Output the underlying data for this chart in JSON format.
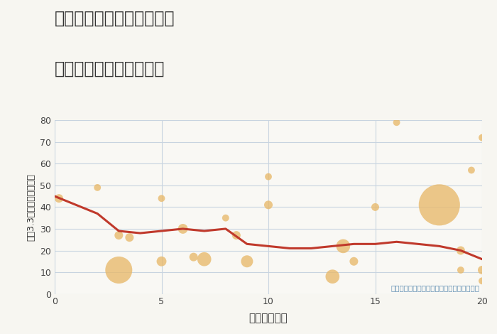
{
  "title_line1": "兵庫県豊岡市日高町森山の",
  "title_line2": "駅距離別中古戸建て価格",
  "xlabel": "駅距離（分）",
  "ylabel": "坪（3.3㎡）単価（万円）",
  "xlim": [
    0,
    20
  ],
  "ylim": [
    0,
    80
  ],
  "yticks": [
    0,
    10,
    20,
    30,
    40,
    50,
    60,
    70,
    80
  ],
  "xticks": [
    0,
    5,
    10,
    15,
    20
  ],
  "bg_color": "#f7f6f1",
  "plot_bg_color": "#f9f8f4",
  "grid_color": "#c8d4e0",
  "bubble_color": "#e8b96a",
  "bubble_alpha": 0.78,
  "line_color": "#c0392b",
  "line_width": 2.2,
  "annotation_text": "円の大きさは、取引のあった物件面積を示す",
  "annotation_color": "#5a8ab0",
  "scatter_x": [
    0.2,
    2,
    3,
    3,
    3.5,
    5,
    5,
    6,
    6.5,
    7,
    8,
    8.5,
    9,
    10,
    10,
    13,
    13.5,
    14,
    15,
    16,
    18,
    19,
    19,
    19.5,
    20,
    20,
    20
  ],
  "scatter_y": [
    44,
    49,
    27,
    11,
    26,
    15,
    44,
    30,
    17,
    16,
    35,
    27,
    15,
    54,
    41,
    8,
    22,
    15,
    40,
    79,
    41,
    20,
    11,
    57,
    72,
    6,
    11
  ],
  "scatter_size": [
    30,
    20,
    30,
    300,
    30,
    40,
    20,
    40,
    30,
    80,
    20,
    30,
    60,
    20,
    30,
    80,
    80,
    30,
    25,
    20,
    700,
    30,
    20,
    20,
    20,
    20,
    30
  ],
  "line_x": [
    0,
    1,
    2,
    3,
    4,
    5,
    6,
    7,
    8,
    9,
    10,
    11,
    12,
    13,
    14,
    15,
    16,
    17,
    18,
    19,
    20
  ],
  "line_y": [
    45,
    41,
    37,
    29,
    28,
    29,
    30,
    29,
    30,
    23,
    22,
    21,
    21,
    22,
    23,
    23,
    24,
    23,
    22,
    20,
    16
  ]
}
